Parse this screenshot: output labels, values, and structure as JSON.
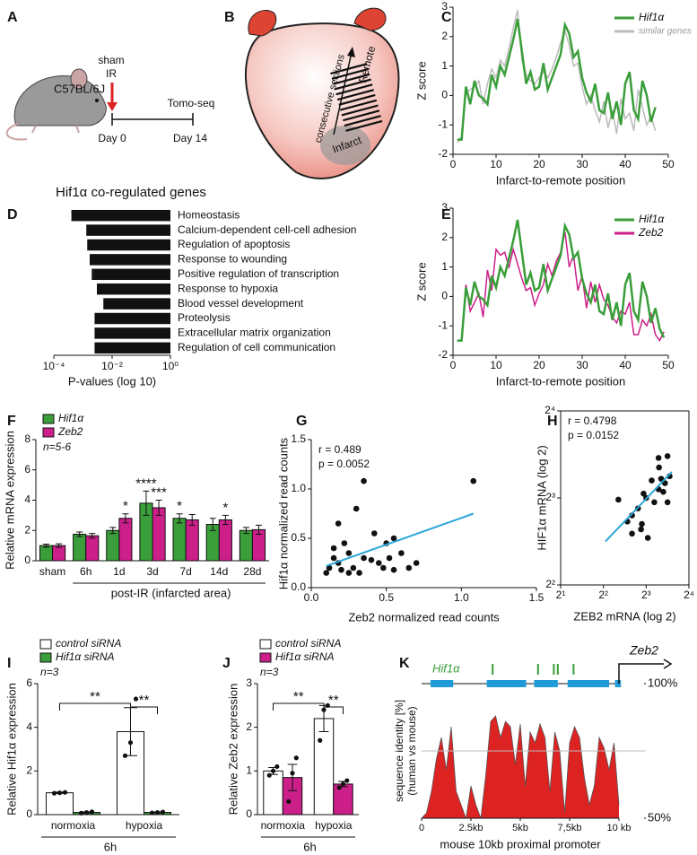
{
  "panel_labels": [
    "A",
    "B",
    "C",
    "D",
    "E",
    "F",
    "G",
    "H",
    "I",
    "J",
    "K"
  ],
  "diagram_a": {
    "strain": "C57BL/6J",
    "treatment": [
      "sham",
      "IR"
    ],
    "method": "Tomo-seq",
    "timepoints": [
      "Day 0",
      "Day 14"
    ]
  },
  "diagram_b": {
    "top": "Remote",
    "middle": "consecutive sections",
    "bottom": "Infarct"
  },
  "chart_data": [
    {
      "type": "line",
      "xlabel": "Infarct-to-remote position",
      "ylabel": "Z score",
      "xlim": [
        0,
        50
      ],
      "xticks": [
        0,
        10,
        20,
        30,
        40,
        50
      ],
      "ylim": [
        -2,
        3
      ],
      "yticks": [
        -2,
        -1,
        0,
        1,
        2,
        3
      ],
      "x": [
        1,
        2,
        3,
        4,
        5,
        6,
        7,
        8,
        9,
        10,
        11,
        12,
        13,
        14,
        15,
        16,
        17,
        18,
        19,
        20,
        21,
        22,
        23,
        24,
        25,
        26,
        27,
        28,
        29,
        30,
        31,
        32,
        33,
        34,
        35,
        36,
        37,
        38,
        39,
        40,
        41,
        42,
        43,
        44,
        45,
        46,
        47
      ],
      "series": [
        {
          "name": "Hif1α",
          "color": "#3a9e3a",
          "values": [
            -1.5,
            -1.5,
            0.3,
            -0.3,
            0.5,
            0,
            -0.1,
            -0.3,
            0.7,
            0.3,
            1.0,
            0.7,
            1.3,
            1.9,
            2.6,
            1.5,
            0.4,
            0.8,
            0.2,
            0.3,
            1.1,
            0.2,
            0.6,
            1.0,
            1.4,
            2.4,
            2.1,
            1.3,
            1.5,
            0.6,
            0.1,
            -0.2,
            0.4,
            -0.5,
            -0.6,
            0.1,
            -0.8,
            -0.2,
            -1.0,
            0.4,
            0.8,
            -0.5,
            -0.8,
            0.5,
            0,
            -0.9,
            -0.4
          ]
        },
        {
          "name": "similar genes",
          "color": "#bbbbbb",
          "values": [
            -1.6,
            -1.4,
            0.1,
            0.2,
            0.3,
            0.5,
            -0.3,
            0.4,
            0.9,
            0.6,
            1.2,
            1.0,
            1.6,
            2.3,
            2.9,
            1.2,
            0.7,
            0.5,
            0.4,
            0.6,
            0.8,
            0.6,
            0.9,
            1.3,
            1.8,
            2.2,
            1.7,
            1.0,
            1.1,
            0.3,
            -0.3,
            0.0,
            -0.5,
            -0.9,
            -0.2,
            -1.1,
            -0.5,
            -1.3,
            -0.1,
            -0.8,
            -0.6,
            -1.2,
            0.2,
            -0.4,
            -1.0,
            -0.7,
            -1.2
          ]
        }
      ]
    },
    {
      "type": "barh",
      "title": "Hif1α co-regulated genes",
      "xlabel": "P-values (log 10)",
      "xscale": "log",
      "xlim": [
        0.0001,
        1
      ],
      "xticks": [
        {
          "value": 0.0001,
          "label": "10⁻⁴"
        },
        {
          "value": 0.01,
          "label": "10⁻²"
        },
        {
          "value": 1,
          "label": "10⁰"
        }
      ],
      "color": "#111111",
      "categories": [
        "Homeostasis",
        "Calcium-dependent cell-cell adhesion",
        "Regulation of apoptosis",
        "Response to wounding",
        "Positive regulation of transcription",
        "Response to hypoxia",
        "Blood vessel development",
        "Proteolysis",
        "Extracellular matrix organization",
        "Regulation of cell communication"
      ],
      "values": [
        0.0004,
        0.0013,
        0.0014,
        0.0017,
        0.002,
        0.003,
        0.005,
        0.0025,
        0.0025,
        0.0025
      ]
    },
    {
      "type": "line",
      "xlabel": "Infarct-to-remote position",
      "ylabel": "Z score",
      "xlim": [
        0,
        50
      ],
      "xticks": [
        0,
        10,
        20,
        30,
        40,
        50
      ],
      "ylim": [
        -2,
        3
      ],
      "yticks": [
        -2,
        -1,
        0,
        1,
        2,
        3
      ],
      "x": [
        1,
        2,
        3,
        4,
        5,
        6,
        7,
        8,
        9,
        10,
        11,
        12,
        13,
        14,
        15,
        16,
        17,
        18,
        19,
        20,
        21,
        22,
        23,
        24,
        25,
        26,
        27,
        28,
        29,
        30,
        31,
        32,
        33,
        34,
        35,
        36,
        37,
        38,
        39,
        40,
        41,
        42,
        43,
        44,
        45,
        46,
        47,
        48,
        49
      ],
      "series": [
        {
          "name": "Hif1α",
          "color": "#3a9e3a",
          "values": [
            -1.5,
            -1.5,
            0.3,
            -0.3,
            0.5,
            0,
            -0.1,
            -0.3,
            0.7,
            0.3,
            1.0,
            0.7,
            1.3,
            1.9,
            2.6,
            1.5,
            0.4,
            0.8,
            0.2,
            0.3,
            1.1,
            0.2,
            0.6,
            1.0,
            1.4,
            2.4,
            2.1,
            1.3,
            1.5,
            0.6,
            0.1,
            -0.2,
            0.4,
            -0.5,
            -0.6,
            0.1,
            -0.8,
            -0.2,
            -1.0,
            0.4,
            0.8,
            -0.5,
            -0.8,
            0.5,
            0,
            -0.9,
            -0.4,
            -1.1,
            -1.4
          ]
        },
        {
          "name": "Zeb2",
          "color": "#cc1f8a",
          "values": [
            -1.5,
            -1.5,
            0.4,
            -0.5,
            -0.2,
            0.1,
            -0.7,
            0.9,
            0.2,
            1.6,
            1.4,
            1.5,
            1.0,
            1.6,
            1.1,
            0.6,
            0.2,
            0.3,
            -0.3,
            0.1,
            0.4,
            1.1,
            0.7,
            1.2,
            1.5,
            2.2,
            1.0,
            1.4,
            0.2,
            0.7,
            -0.4,
            0.5,
            -0.2,
            0.4,
            -0.1,
            -0.3,
            -0.7,
            -0.9,
            -0.5,
            -0.6,
            -0.2,
            -1.3,
            -1.3,
            -0.8,
            -1.0,
            -0.6,
            -1.3,
            -1.5,
            -1.2
          ]
        }
      ]
    },
    {
      "type": "bar",
      "ylabel": "Relative mRNA expression",
      "xlabel": "post-IR (infarcted area)",
      "note": "n=5-6",
      "ylim": [
        0,
        8
      ],
      "yticks": [
        0,
        2,
        4,
        6,
        8
      ],
      "categories": [
        "sham",
        "6h",
        "1d",
        "3d",
        "7d",
        "14d",
        "28d"
      ],
      "series": [
        {
          "name": "Hif1α",
          "color": "#3a9e3a",
          "values": [
            1.0,
            1.75,
            2.0,
            3.8,
            2.8,
            2.4,
            2.0
          ],
          "errors": [
            0.1,
            0.15,
            0.2,
            0.8,
            0.3,
            0.4,
            0.2
          ]
        },
        {
          "name": "Zeb2",
          "color": "#cc1f8a",
          "values": [
            1.0,
            1.65,
            2.8,
            3.5,
            2.7,
            2.7,
            2.05
          ],
          "errors": [
            0.12,
            0.15,
            0.3,
            0.5,
            0.35,
            0.3,
            0.3
          ]
        }
      ],
      "annotations": [
        {
          "text": "*",
          "at": [
            2,
            1
          ]
        },
        {
          "text": "****",
          "at": [
            3,
            0
          ]
        },
        {
          "text": "***",
          "at": [
            3,
            1
          ]
        },
        {
          "text": "*",
          "at": [
            4,
            0
          ]
        },
        {
          "text": "*",
          "at": [
            5,
            1
          ]
        }
      ]
    },
    {
      "type": "scatter",
      "xlabel": "Zeb2 normalized read counts",
      "ylabel": "Hif1α  normalized read counts",
      "stats": [
        "r = 0.489",
        "p = 0.0052"
      ],
      "color": "#111111",
      "fit_color": "#2aa7d8",
      "xlim": [
        0,
        1.5
      ],
      "xticks": [
        {
          "value": 0,
          "label": "0.0"
        },
        0.5,
        {
          "value": 1,
          "label": "1.0"
        },
        1.5
      ],
      "ylim": [
        0,
        1.5
      ],
      "yticks": [
        {
          "value": 0,
          "label": "0.0"
        },
        0.5,
        {
          "value": 1,
          "label": "1.0"
        },
        1.5
      ],
      "x": [
        0.1,
        0.12,
        0.15,
        0.18,
        0.2,
        0.22,
        0.25,
        0.28,
        0.3,
        0.32,
        0.35,
        0.4,
        0.42,
        0.45,
        0.5,
        0.52,
        0.55,
        0.6,
        0.65,
        0.7,
        0.18,
        0.15,
        0.35,
        0.55,
        1.08,
        0.25,
        0.48
      ],
      "values": [
        0.15,
        0.2,
        0.3,
        0.25,
        0.18,
        0.45,
        0.35,
        0.2,
        0.8,
        0.15,
        0.3,
        0.28,
        0.55,
        0.25,
        0.45,
        0.3,
        0.5,
        0.35,
        0.2,
        0.25,
        0.65,
        0.4,
        1.08,
        0.18,
        1.08,
        0.15,
        0.2
      ],
      "fit": {
        "x": [
          0.1,
          1.08
        ],
        "y": [
          0.22,
          0.75
        ]
      }
    },
    {
      "type": "scatter",
      "xlabel": "ZEB2 mRNA (log 2)",
      "ylabel": "HIF1α mRNA (log 2)",
      "stats": [
        "r = 0.4798",
        "p = 0.0152"
      ],
      "color": "#111111",
      "fit_color": "#2aa7d8",
      "frame": true,
      "xscale": "log",
      "yscale": "log",
      "xlim": [
        2,
        16
      ],
      "xticks": [
        {
          "value": 2,
          "label": "2¹"
        },
        {
          "value": 4,
          "label": "2²"
        },
        {
          "value": 8,
          "label": "2³"
        },
        {
          "value": 16,
          "label": "2⁴"
        }
      ],
      "ylim": [
        4,
        16
      ],
      "yticks": [
        {
          "value": 4,
          "label": "2²"
        },
        {
          "value": 8,
          "label": "2³"
        },
        {
          "value": 16,
          "label": "2⁴"
        }
      ],
      "x": [
        5.1,
        6.36,
        7.01,
        7.67,
        8.75,
        9.78,
        11.31,
        10.85,
        9.13,
        7.36,
        6.36,
        8.22,
        5.9,
        9.78,
        10.56,
        11.31,
        7.46,
        8,
        10.2,
        9.85,
        11.7
      ],
      "values": [
        7.89,
        6.96,
        7.36,
        8.28,
        9.19,
        11.0,
        11.16,
        9.0,
        7.73,
        6.23,
        6.02,
        5.82,
        6.63,
        8.57,
        8.4,
        7.73,
        6.5,
        8,
        9.32,
        10.2,
        9.51
      ],
      "fit": {
        "x": [
          4.14,
          12.13
        ],
        "y": [
          5.66,
          9.85
        ]
      }
    },
    {
      "type": "bar",
      "ylabel": "Relative Hif1α expression",
      "xlabel": "6h",
      "note": "n=3",
      "ylim": [
        0,
        6
      ],
      "yticks": [
        0,
        2,
        4,
        6
      ],
      "categories": [
        "normoxia",
        "hypoxia"
      ],
      "series": [
        {
          "name": "control siRNA",
          "color": "#ffffff",
          "values": [
            1.0,
            3.8
          ],
          "errors": [
            0.03,
            1.1
          ],
          "points": [
            [
              0.98,
              1.0,
              1.02
            ],
            [
              2.7,
              3.3,
              5.3
            ]
          ]
        },
        {
          "name": "Hif1α siRNA",
          "color": "#3a9e3a",
          "values": [
            0.1,
            0.1
          ],
          "errors": [
            0.03,
            0.02
          ],
          "points": [
            [
              0.07,
              0.1,
              0.13
            ],
            [
              0.08,
              0.1,
              0.12
            ]
          ]
        }
      ],
      "brackets": [
        {
          "text": "**",
          "from": [
            0,
            0
          ],
          "to": [
            1,
            0
          ]
        },
        {
          "text": "**",
          "from": [
            1,
            0
          ],
          "to": [
            1,
            1
          ]
        }
      ]
    },
    {
      "type": "bar",
      "ylabel": "Relative Zeb2 expression",
      "xlabel": "6h",
      "note": "n=3",
      "ylim": [
        0,
        3
      ],
      "yticks": [
        0,
        1,
        2,
        3
      ],
      "categories": [
        "normoxia",
        "hypoxia"
      ],
      "series": [
        {
          "name": "control siRNA",
          "color": "#ffffff",
          "values": [
            1.0,
            2.2
          ],
          "errors": [
            0.08,
            0.3
          ],
          "points": [
            [
              0.9,
              1.0,
              1.1
            ],
            [
              1.7,
              2.4,
              2.5
            ]
          ]
        },
        {
          "name": "Hif1α siRNA",
          "color": "#cc1f8a",
          "values": [
            0.85,
            0.7
          ],
          "errors": [
            0.3,
            0.06
          ],
          "points": [
            [
              0.3,
              0.95,
              1.3
            ],
            [
              0.62,
              0.7,
              0.78
            ]
          ]
        }
      ],
      "brackets": [
        {
          "text": "**",
          "from": [
            0,
            0
          ],
          "to": [
            1,
            0
          ]
        },
        {
          "text": "**",
          "from": [
            1,
            0
          ],
          "to": [
            1,
            1
          ]
        }
      ]
    },
    {
      "type": "area",
      "xlabel": "mouse 10kb proximal promoter",
      "ylabel": [
        "sequence identity [%]",
        "(human vs mouse)"
      ],
      "gene": "Zeb2",
      "tfbs_label": "Hif1α",
      "color": "#dd2222",
      "xlim": [
        0,
        10
      ],
      "xticks": [
        0,
        {
          "value": 2.5,
          "label": "2.5kb"
        },
        {
          "value": 5,
          "label": "5kb"
        },
        {
          "value": 7.5,
          "label": "7,5kb"
        },
        {
          "value": 10,
          "label": "10 kb"
        }
      ],
      "ylim": [
        50,
        100
      ],
      "yticks": [
        {
          "value": 50,
          "label": "50%"
        },
        {
          "value": 100,
          "label": "100%"
        }
      ],
      "hline": 75,
      "exons": [
        [
          0.45,
          1.6
        ],
        [
          3.3,
          5.3
        ],
        [
          5.7,
          6.9
        ],
        [
          7.4,
          9.5
        ],
        [
          9.8,
          10.1
        ]
      ],
      "exon_color": "#1f9bd8",
      "tfbs": [
        3.6,
        5.9,
        6.7,
        6.9,
        7.7
      ],
      "tfbs_color": "#3a9e3a",
      "x": [
        0,
        0.25,
        0.5,
        0.75,
        1,
        1.25,
        1.5,
        1.75,
        2,
        2.25,
        2.5,
        2.75,
        3,
        3.25,
        3.5,
        3.75,
        4,
        4.25,
        4.5,
        4.75,
        5,
        5.25,
        5.5,
        5.75,
        6,
        6.25,
        6.5,
        6.75,
        7,
        7.25,
        7.5,
        7.75,
        8,
        8.25,
        8.5,
        8.75,
        9,
        9.25,
        9.5,
        9.75,
        10
      ],
      "values": [
        50,
        52,
        60,
        72,
        80,
        68,
        84,
        60,
        55,
        50,
        62,
        55,
        50,
        66,
        86,
        88,
        80,
        86,
        84,
        70,
        85,
        62,
        82,
        78,
        85,
        80,
        60,
        82,
        75,
        52,
        78,
        84,
        80,
        65,
        55,
        62,
        80,
        76,
        68,
        78,
        55
      ]
    }
  ]
}
